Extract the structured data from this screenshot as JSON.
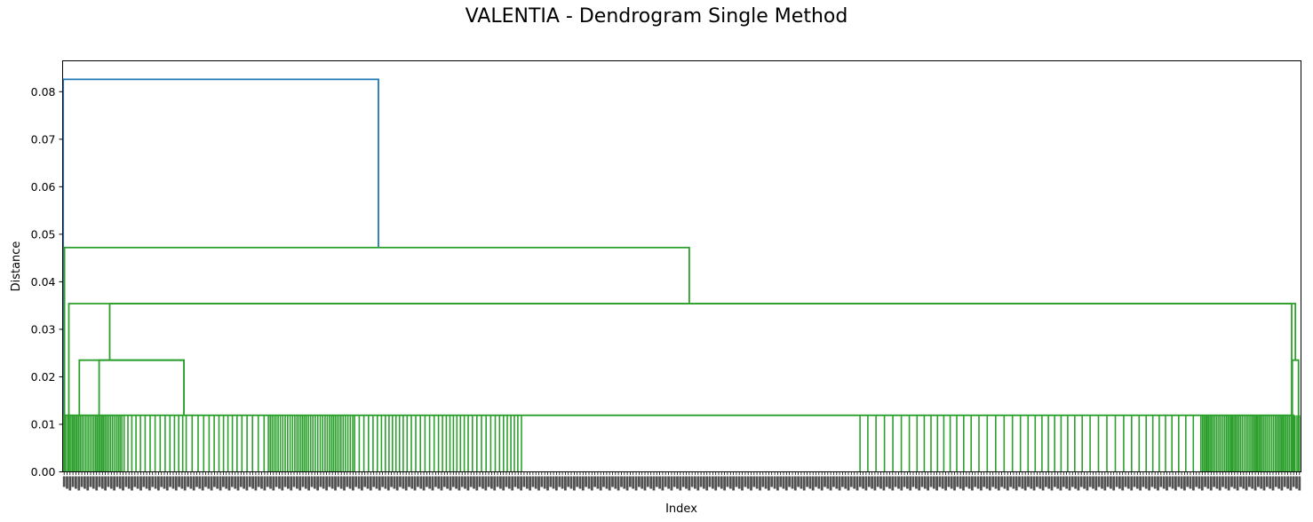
{
  "chart_data": {
    "type": "dendrogram",
    "title": "VALENTIA - Dendrogram Single Method",
    "xlabel": "Index",
    "ylabel": "Distance",
    "ylim": [
      0,
      0.0865
    ],
    "yticks": [
      0.0,
      0.01,
      0.02,
      0.03,
      0.04,
      0.05,
      0.06,
      0.07,
      0.08
    ],
    "xtick_labels": "dense unreadable leaf index labels",
    "grid": false,
    "colors": {
      "above_threshold": "#1f77b4",
      "cluster": "#2ca02c",
      "axes": "#000000"
    },
    "merge_heights": [
      0.0826,
      0.0472,
      0.0354,
      0.0235,
      0.0119
    ],
    "links": [
      {
        "x": [
          0.0005,
          0.0005,
          0.255,
          0.255
        ],
        "y": [
          0.0,
          0.0826,
          0.0826,
          0.0472
        ],
        "color": "above"
      },
      {
        "x": [
          0.0015,
          0.0015,
          0.506,
          0.506
        ],
        "y": [
          0.0,
          0.0472,
          0.0472,
          0.0354
        ],
        "color": "cluster"
      },
      {
        "x": [
          0.005,
          0.005,
          0.9925,
          0.9925
        ],
        "y": [
          0.0,
          0.0354,
          0.0354,
          0.0
        ],
        "color": "cluster"
      },
      {
        "x": [
          0.038,
          0.038,
          0.9955,
          0.9955
        ],
        "y": [
          0.0235,
          0.0354,
          0.0354,
          0.0235
        ],
        "color": "cluster"
      },
      {
        "x": [
          0.0135,
          0.0135,
          0.098,
          0.098
        ],
        "y": [
          0.0119,
          0.0235,
          0.0235,
          0.0119
        ],
        "color": "cluster"
      },
      {
        "x": [
          0.0295,
          0.0295,
          0.098,
          0.098
        ],
        "y": [
          0.0119,
          0.0235,
          0.0235,
          0.0119
        ],
        "color": "cluster"
      },
      {
        "x": [
          0.993,
          0.993,
          0.998,
          0.998
        ],
        "y": [
          0.0,
          0.0235,
          0.0235,
          0.0
        ],
        "color": "cluster"
      },
      {
        "x": [
          0.0005,
          0.0005,
          0.994,
          0.994
        ],
        "y": [
          0.0,
          0.0119,
          0.0119,
          0.0
        ],
        "color": "cluster"
      }
    ],
    "leaf_segments": [
      {
        "x_start": 0.0,
        "x_end": 0.048,
        "count": 34
      },
      {
        "x_start": 0.048,
        "x_end": 0.098,
        "count": 14
      },
      {
        "x_start": 0.098,
        "x_end": 0.165,
        "count": 16
      },
      {
        "x_start": 0.165,
        "x_end": 0.235,
        "count": 40
      },
      {
        "x_start": 0.235,
        "x_end": 0.373,
        "count": 42
      },
      {
        "x_start": 0.373,
        "x_end": 0.643,
        "count": 0
      },
      {
        "x_start": 0.643,
        "x_end": 0.918,
        "count": 46
      },
      {
        "x_start": 0.918,
        "x_end": 1.0,
        "count": 60
      }
    ]
  }
}
